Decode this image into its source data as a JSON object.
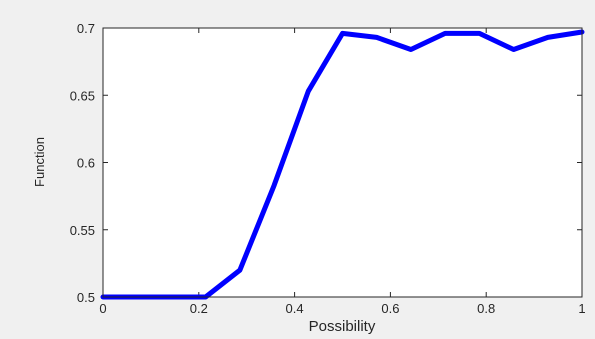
{
  "chart_data": {
    "type": "line",
    "title": "",
    "xlabel": "Possibility",
    "ylabel": "Function",
    "xlim": [
      0,
      1
    ],
    "ylim": [
      0.5,
      0.7
    ],
    "xticks": [
      0,
      0.2,
      0.4,
      0.6,
      0.8,
      1
    ],
    "xtick_labels": [
      "0",
      "0.2",
      "0.4",
      "0.6",
      "0.8",
      "1"
    ],
    "yticks": [
      0.5,
      0.55,
      0.6,
      0.65,
      0.7
    ],
    "ytick_labels": [
      "0.5",
      "0.55",
      "0.6",
      "0.65",
      "0.7"
    ],
    "grid": false,
    "series": [
      {
        "color": "#0000ff",
        "x": [
          0,
          0.0714,
          0.1429,
          0.2143,
          0.2857,
          0.3571,
          0.4286,
          0.5,
          0.5714,
          0.6429,
          0.7143,
          0.7857,
          0.8571,
          0.9286,
          1.0
        ],
        "y": [
          0.5,
          0.5,
          0.5,
          0.5,
          0.52,
          0.583,
          0.653,
          0.696,
          0.693,
          0.684,
          0.696,
          0.696,
          0.684,
          0.693,
          0.697
        ]
      }
    ]
  },
  "colors": {
    "figure_background": "#f0f0f0",
    "axes_background": "#ffffff",
    "axis_color": "#262626"
  }
}
